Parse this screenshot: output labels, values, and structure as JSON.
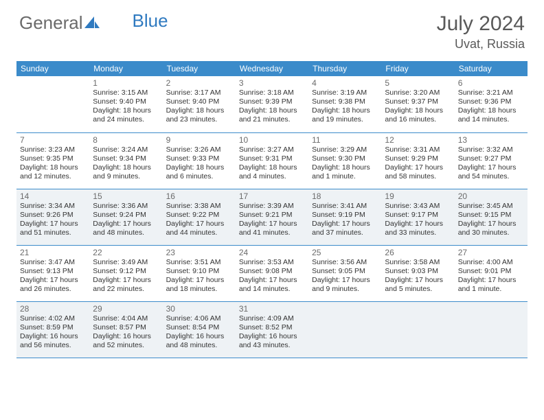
{
  "logo": {
    "text_gray": "General",
    "text_blue": "Blue"
  },
  "header": {
    "month_title": "July 2024",
    "location": "Uvat, Russia"
  },
  "colors": {
    "header_bg": "#3b8bca",
    "header_text": "#ffffff",
    "shaded_bg": "#eef2f5",
    "rule": "#3b8bca",
    "title_color": "#595959",
    "logo_gray": "#6a6a6a",
    "logo_blue": "#2f7ac0",
    "body_text": "#333333"
  },
  "typography": {
    "month_title_pt": 30,
    "location_pt": 18,
    "dayhead_pt": 12,
    "daynum_pt": 12,
    "cell_pt": 10.5
  },
  "day_names": [
    "Sunday",
    "Monday",
    "Tuesday",
    "Wednesday",
    "Thursday",
    "Friday",
    "Saturday"
  ],
  "weeks": [
    {
      "shaded": false,
      "days": [
        {
          "n": "",
          "sr": "",
          "ss": "",
          "d1": "",
          "d2": ""
        },
        {
          "n": "1",
          "sr": "Sunrise: 3:15 AM",
          "ss": "Sunset: 9:40 PM",
          "d1": "Daylight: 18 hours",
          "d2": "and 24 minutes."
        },
        {
          "n": "2",
          "sr": "Sunrise: 3:17 AM",
          "ss": "Sunset: 9:40 PM",
          "d1": "Daylight: 18 hours",
          "d2": "and 23 minutes."
        },
        {
          "n": "3",
          "sr": "Sunrise: 3:18 AM",
          "ss": "Sunset: 9:39 PM",
          "d1": "Daylight: 18 hours",
          "d2": "and 21 minutes."
        },
        {
          "n": "4",
          "sr": "Sunrise: 3:19 AM",
          "ss": "Sunset: 9:38 PM",
          "d1": "Daylight: 18 hours",
          "d2": "and 19 minutes."
        },
        {
          "n": "5",
          "sr": "Sunrise: 3:20 AM",
          "ss": "Sunset: 9:37 PM",
          "d1": "Daylight: 18 hours",
          "d2": "and 16 minutes."
        },
        {
          "n": "6",
          "sr": "Sunrise: 3:21 AM",
          "ss": "Sunset: 9:36 PM",
          "d1": "Daylight: 18 hours",
          "d2": "and 14 minutes."
        }
      ]
    },
    {
      "shaded": false,
      "days": [
        {
          "n": "7",
          "sr": "Sunrise: 3:23 AM",
          "ss": "Sunset: 9:35 PM",
          "d1": "Daylight: 18 hours",
          "d2": "and 12 minutes."
        },
        {
          "n": "8",
          "sr": "Sunrise: 3:24 AM",
          "ss": "Sunset: 9:34 PM",
          "d1": "Daylight: 18 hours",
          "d2": "and 9 minutes."
        },
        {
          "n": "9",
          "sr": "Sunrise: 3:26 AM",
          "ss": "Sunset: 9:33 PM",
          "d1": "Daylight: 18 hours",
          "d2": "and 6 minutes."
        },
        {
          "n": "10",
          "sr": "Sunrise: 3:27 AM",
          "ss": "Sunset: 9:31 PM",
          "d1": "Daylight: 18 hours",
          "d2": "and 4 minutes."
        },
        {
          "n": "11",
          "sr": "Sunrise: 3:29 AM",
          "ss": "Sunset: 9:30 PM",
          "d1": "Daylight: 18 hours",
          "d2": "and 1 minute."
        },
        {
          "n": "12",
          "sr": "Sunrise: 3:31 AM",
          "ss": "Sunset: 9:29 PM",
          "d1": "Daylight: 17 hours",
          "d2": "and 58 minutes."
        },
        {
          "n": "13",
          "sr": "Sunrise: 3:32 AM",
          "ss": "Sunset: 9:27 PM",
          "d1": "Daylight: 17 hours",
          "d2": "and 54 minutes."
        }
      ]
    },
    {
      "shaded": true,
      "days": [
        {
          "n": "14",
          "sr": "Sunrise: 3:34 AM",
          "ss": "Sunset: 9:26 PM",
          "d1": "Daylight: 17 hours",
          "d2": "and 51 minutes."
        },
        {
          "n": "15",
          "sr": "Sunrise: 3:36 AM",
          "ss": "Sunset: 9:24 PM",
          "d1": "Daylight: 17 hours",
          "d2": "and 48 minutes."
        },
        {
          "n": "16",
          "sr": "Sunrise: 3:38 AM",
          "ss": "Sunset: 9:22 PM",
          "d1": "Daylight: 17 hours",
          "d2": "and 44 minutes."
        },
        {
          "n": "17",
          "sr": "Sunrise: 3:39 AM",
          "ss": "Sunset: 9:21 PM",
          "d1": "Daylight: 17 hours",
          "d2": "and 41 minutes."
        },
        {
          "n": "18",
          "sr": "Sunrise: 3:41 AM",
          "ss": "Sunset: 9:19 PM",
          "d1": "Daylight: 17 hours",
          "d2": "and 37 minutes."
        },
        {
          "n": "19",
          "sr": "Sunrise: 3:43 AM",
          "ss": "Sunset: 9:17 PM",
          "d1": "Daylight: 17 hours",
          "d2": "and 33 minutes."
        },
        {
          "n": "20",
          "sr": "Sunrise: 3:45 AM",
          "ss": "Sunset: 9:15 PM",
          "d1": "Daylight: 17 hours",
          "d2": "and 30 minutes."
        }
      ]
    },
    {
      "shaded": false,
      "days": [
        {
          "n": "21",
          "sr": "Sunrise: 3:47 AM",
          "ss": "Sunset: 9:13 PM",
          "d1": "Daylight: 17 hours",
          "d2": "and 26 minutes."
        },
        {
          "n": "22",
          "sr": "Sunrise: 3:49 AM",
          "ss": "Sunset: 9:12 PM",
          "d1": "Daylight: 17 hours",
          "d2": "and 22 minutes."
        },
        {
          "n": "23",
          "sr": "Sunrise: 3:51 AM",
          "ss": "Sunset: 9:10 PM",
          "d1": "Daylight: 17 hours",
          "d2": "and 18 minutes."
        },
        {
          "n": "24",
          "sr": "Sunrise: 3:53 AM",
          "ss": "Sunset: 9:08 PM",
          "d1": "Daylight: 17 hours",
          "d2": "and 14 minutes."
        },
        {
          "n": "25",
          "sr": "Sunrise: 3:56 AM",
          "ss": "Sunset: 9:05 PM",
          "d1": "Daylight: 17 hours",
          "d2": "and 9 minutes."
        },
        {
          "n": "26",
          "sr": "Sunrise: 3:58 AM",
          "ss": "Sunset: 9:03 PM",
          "d1": "Daylight: 17 hours",
          "d2": "and 5 minutes."
        },
        {
          "n": "27",
          "sr": "Sunrise: 4:00 AM",
          "ss": "Sunset: 9:01 PM",
          "d1": "Daylight: 17 hours",
          "d2": "and 1 minute."
        }
      ]
    },
    {
      "shaded": true,
      "days": [
        {
          "n": "28",
          "sr": "Sunrise: 4:02 AM",
          "ss": "Sunset: 8:59 PM",
          "d1": "Daylight: 16 hours",
          "d2": "and 56 minutes."
        },
        {
          "n": "29",
          "sr": "Sunrise: 4:04 AM",
          "ss": "Sunset: 8:57 PM",
          "d1": "Daylight: 16 hours",
          "d2": "and 52 minutes."
        },
        {
          "n": "30",
          "sr": "Sunrise: 4:06 AM",
          "ss": "Sunset: 8:54 PM",
          "d1": "Daylight: 16 hours",
          "d2": "and 48 minutes."
        },
        {
          "n": "31",
          "sr": "Sunrise: 4:09 AM",
          "ss": "Sunset: 8:52 PM",
          "d1": "Daylight: 16 hours",
          "d2": "and 43 minutes."
        },
        {
          "n": "",
          "sr": "",
          "ss": "",
          "d1": "",
          "d2": ""
        },
        {
          "n": "",
          "sr": "",
          "ss": "",
          "d1": "",
          "d2": ""
        },
        {
          "n": "",
          "sr": "",
          "ss": "",
          "d1": "",
          "d2": ""
        }
      ]
    }
  ]
}
